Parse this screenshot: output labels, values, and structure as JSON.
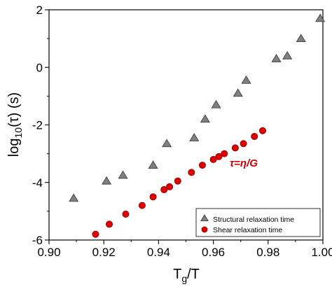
{
  "chart_data": {
    "type": "scatter",
    "xlabel_main": "T",
    "xlabel_sub": "g",
    "xlabel_tail": "/T",
    "ylabel_pre": "log",
    "ylabel_sub": "10",
    "ylabel_post": "(τ) (s)",
    "xlim": [
      0.9,
      1.0
    ],
    "ylim": [
      -6,
      2
    ],
    "x_ticks": [
      "0.90",
      "0.92",
      "0.94",
      "0.96",
      "0.98",
      "1.00"
    ],
    "y_ticks": [
      "-6",
      "-4",
      "-2",
      "0",
      "2"
    ],
    "grid": false,
    "legend_position": "bottom-right",
    "annotation": {
      "text": "τ=η/G",
      "x": 0.966,
      "y": -3.45,
      "color": "#cc0000"
    },
    "series": [
      {
        "name": "Structural relaxation time",
        "marker": "triangle",
        "color": "#808080",
        "x": [
          0.909,
          0.921,
          0.927,
          0.938,
          0.943,
          0.953,
          0.957,
          0.961,
          0.969,
          0.972,
          0.983,
          0.987,
          0.992,
          0.999
        ],
        "y": [
          -4.55,
          -3.95,
          -3.75,
          -3.4,
          -2.65,
          -2.45,
          -1.8,
          -1.3,
          -0.9,
          -0.45,
          0.3,
          0.4,
          1.0,
          1.7
        ]
      },
      {
        "name": "Shear relaxation time",
        "marker": "circle",
        "color": "#e00000",
        "x": [
          0.917,
          0.922,
          0.928,
          0.934,
          0.938,
          0.942,
          0.944,
          0.947,
          0.952,
          0.956,
          0.96,
          0.962,
          0.964,
          0.968,
          0.971,
          0.975,
          0.978
        ],
        "y": [
          -5.8,
          -5.45,
          -5.1,
          -4.8,
          -4.5,
          -4.25,
          -4.15,
          -3.95,
          -3.65,
          -3.4,
          -3.2,
          -3.1,
          -3.0,
          -2.8,
          -2.65,
          -2.4,
          -2.2
        ]
      }
    ]
  }
}
